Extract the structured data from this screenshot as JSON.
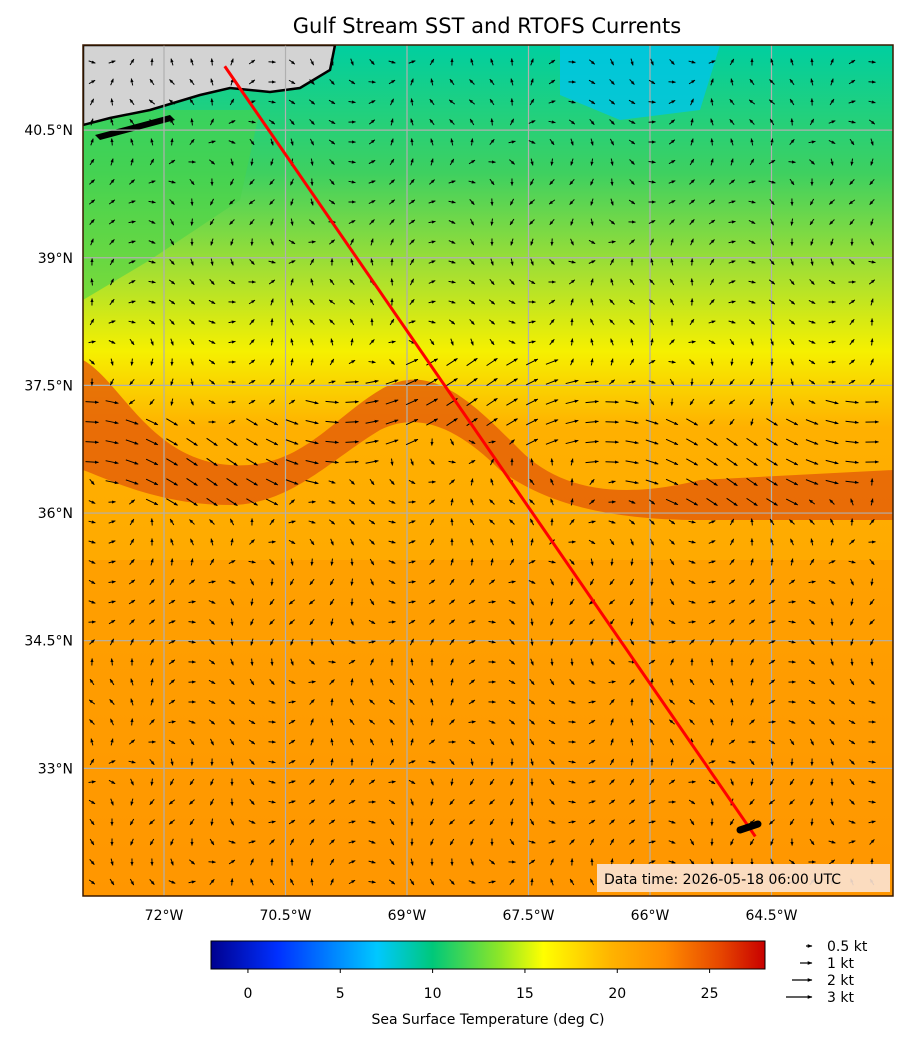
{
  "title": "Gulf Stream SST and RTOFS Currents",
  "lat_ticks": [
    "40.5°N",
    "39°N",
    "37.5°N",
    "36°N",
    "34.5°N",
    "33°N"
  ],
  "lon_ticks": [
    "72°W",
    "70.5°W",
    "69°W",
    "67.5°W",
    "66°W",
    "64.5°W"
  ],
  "data_time": "Data time: 2026-05-18 06:00 UTC",
  "colorbar": {
    "label": "Sea Surface Temperature (deg C)",
    "ticks": [
      "0",
      "5",
      "10",
      "15",
      "20",
      "25"
    ],
    "range": [
      -2,
      28
    ]
  },
  "quiver_key": [
    "0.5 kt",
    "1 kt",
    "2 kt",
    "3 kt"
  ],
  "map_extent": {
    "lon": [
      -73.0,
      -63.0
    ],
    "lat": [
      31.5,
      41.5
    ]
  },
  "track": {
    "start": {
      "lon": -71.25,
      "lat": 41.25
    },
    "end": {
      "lon": -64.7,
      "lat": 32.2
    }
  },
  "colors": {
    "track": "#ff0000",
    "land": "#d3d3d3",
    "grid": "#b0b0b0",
    "frame": "#3a1a00"
  }
}
